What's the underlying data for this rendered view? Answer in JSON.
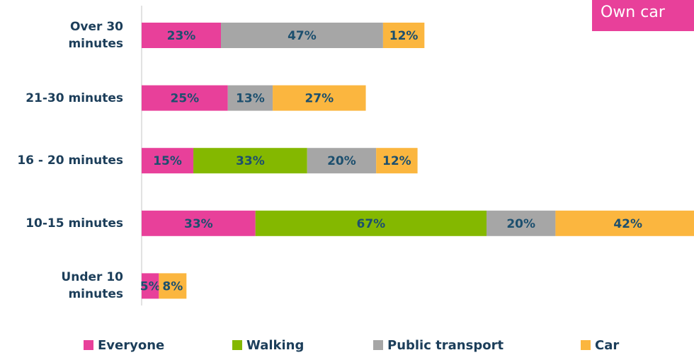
{
  "chart_data": {
    "type": "stacked_bar_horizontal",
    "annotation": "Own car",
    "categories": [
      "Over 30\nminutes",
      "21-30 minutes",
      "16 - 20 minutes",
      "10-15 minutes",
      "Under 10\nminutes"
    ],
    "series": [
      {
        "name": "Everyone",
        "color": "#e8409a",
        "values": [
          23,
          25,
          15,
          33,
          5
        ],
        "value_labels": [
          "23%",
          "25%",
          "15%",
          "33%",
          "5%"
        ]
      },
      {
        "name": "Walking",
        "color": "#84b800",
        "values": [
          null,
          null,
          33,
          67,
          null
        ],
        "value_labels": [
          null,
          null,
          "33%",
          "67%",
          null
        ]
      },
      {
        "name": "Public transport",
        "color": "#a6a6a6",
        "values": [
          47,
          13,
          20,
          20,
          null
        ],
        "value_labels": [
          "47%",
          "13%",
          "20%",
          "20%",
          null
        ]
      },
      {
        "name": "Car",
        "color": "#fbb63f",
        "values": [
          12,
          27,
          12,
          42,
          8
        ],
        "value_labels": [
          "12%",
          "27%",
          "12%",
          "42%",
          "8%"
        ]
      }
    ]
  }
}
